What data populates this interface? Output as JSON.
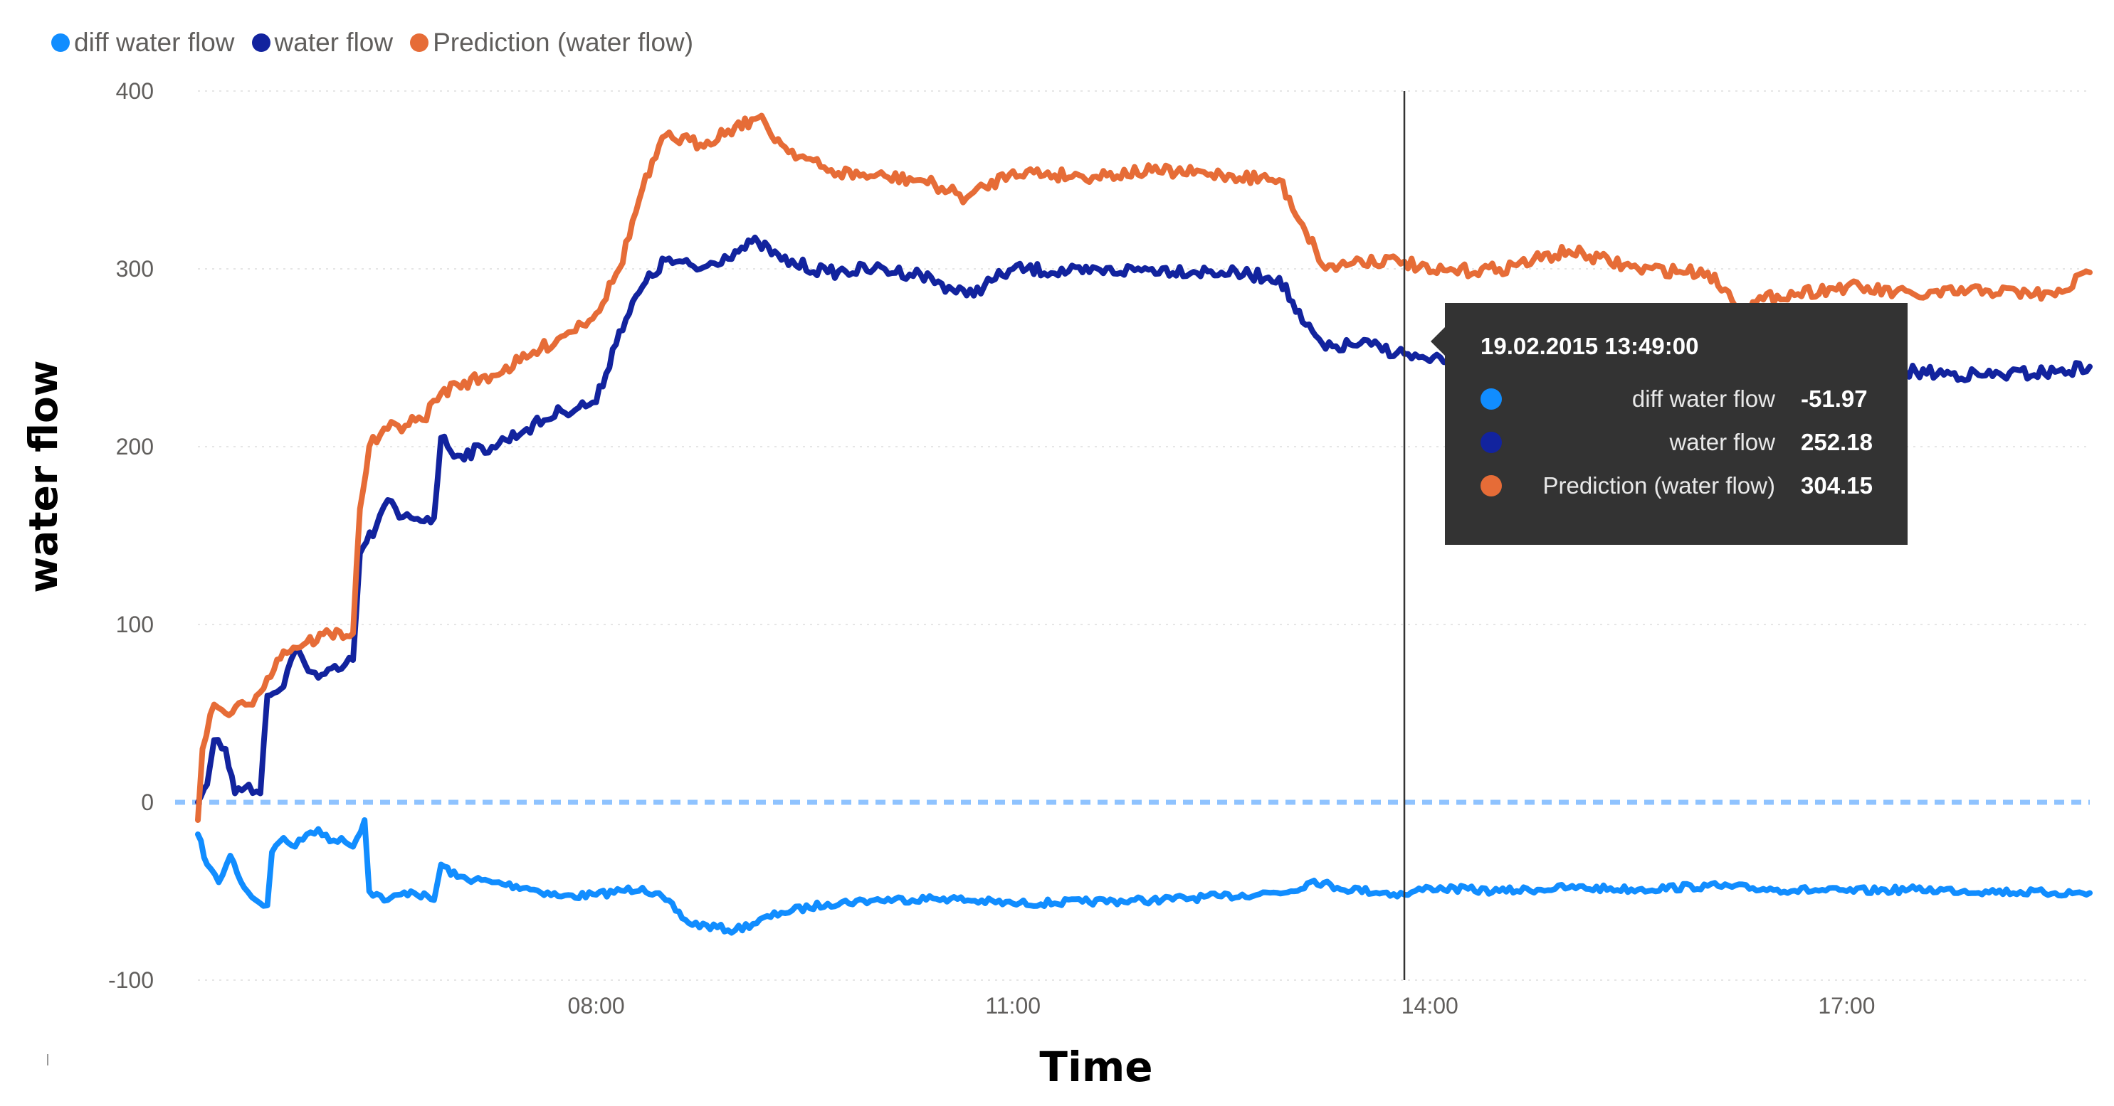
{
  "chart_data": {
    "type": "line",
    "title": "",
    "xlabel": "Time",
    "ylabel": "water flow",
    "x_ticks": [
      "08:00",
      "11:00",
      "14:00",
      "17:00"
    ],
    "y_ticks": [
      "400",
      "300",
      "200",
      "100",
      "0",
      "-100"
    ],
    "ylim": [
      -100,
      400
    ],
    "xlim": [
      "05:08",
      "18:45"
    ],
    "grid": true,
    "legend_position": "top-left",
    "series": [
      {
        "name": "diff water flow",
        "color": "#118dff",
        "points": [
          [
            "05:08",
            -18
          ],
          [
            "05:12",
            -35
          ],
          [
            "05:17",
            -45
          ],
          [
            "05:22",
            -30
          ],
          [
            "05:28",
            -48
          ],
          [
            "05:33",
            -55
          ],
          [
            "05:38",
            -58
          ],
          [
            "05:40",
            -28
          ],
          [
            "05:45",
            -20
          ],
          [
            "05:50",
            -25
          ],
          [
            "05:55",
            -18
          ],
          [
            "06:00",
            -15
          ],
          [
            "06:05",
            -22
          ],
          [
            "06:10",
            -20
          ],
          [
            "06:15",
            -25
          ],
          [
            "06:20",
            -10
          ],
          [
            "06:22",
            -50
          ],
          [
            "06:30",
            -55
          ],
          [
            "06:40",
            -50
          ],
          [
            "06:50",
            -55
          ],
          [
            "06:53",
            -35
          ],
          [
            "07:00",
            -42
          ],
          [
            "07:15",
            -45
          ],
          [
            "07:30",
            -48
          ],
          [
            "07:45",
            -53
          ],
          [
            "08:00",
            -52
          ],
          [
            "08:20",
            -48
          ],
          [
            "08:30",
            -55
          ],
          [
            "08:40",
            -68
          ],
          [
            "09:00",
            -72
          ],
          [
            "09:20",
            -62
          ],
          [
            "09:40",
            -57
          ],
          [
            "10:00",
            -55
          ],
          [
            "10:30",
            -54
          ],
          [
            "11:00",
            -57
          ],
          [
            "11:30",
            -56
          ],
          [
            "12:00",
            -55
          ],
          [
            "12:30",
            -53
          ],
          [
            "13:00",
            -50
          ],
          [
            "13:10",
            -44
          ],
          [
            "13:20",
            -48
          ],
          [
            "13:49",
            -51.97
          ],
          [
            "14:00",
            -48
          ],
          [
            "14:30",
            -50
          ],
          [
            "15:00",
            -48
          ],
          [
            "15:30",
            -49
          ],
          [
            "16:00",
            -47
          ],
          [
            "16:30",
            -49
          ],
          [
            "17:00",
            -50
          ],
          [
            "17:30",
            -49
          ],
          [
            "18:00",
            -50
          ],
          [
            "18:30",
            -51
          ],
          [
            "18:45",
            -51
          ]
        ]
      },
      {
        "name": "water flow",
        "color": "#12239e",
        "points": [
          [
            "05:08",
            0
          ],
          [
            "05:12",
            10
          ],
          [
            "05:15",
            35
          ],
          [
            "05:20",
            30
          ],
          [
            "05:24",
            5
          ],
          [
            "05:30",
            10
          ],
          [
            "05:35",
            5
          ],
          [
            "05:38",
            60
          ],
          [
            "05:45",
            65
          ],
          [
            "05:50",
            85
          ],
          [
            "06:00",
            70
          ],
          [
            "06:10",
            75
          ],
          [
            "06:15",
            80
          ],
          [
            "06:18",
            140
          ],
          [
            "06:25",
            155
          ],
          [
            "06:30",
            170
          ],
          [
            "06:35",
            160
          ],
          [
            "06:40",
            160
          ],
          [
            "06:50",
            160
          ],
          [
            "06:53",
            205
          ],
          [
            "07:00",
            195
          ],
          [
            "07:15",
            200
          ],
          [
            "07:30",
            210
          ],
          [
            "07:45",
            220
          ],
          [
            "08:00",
            225
          ],
          [
            "08:10",
            265
          ],
          [
            "08:20",
            290
          ],
          [
            "08:30",
            305
          ],
          [
            "08:45",
            300
          ],
          [
            "09:00",
            310
          ],
          [
            "09:10",
            315
          ],
          [
            "09:20",
            305
          ],
          [
            "09:40",
            298
          ],
          [
            "10:00",
            300
          ],
          [
            "10:20",
            297
          ],
          [
            "10:40",
            285
          ],
          [
            "11:00",
            300
          ],
          [
            "11:30",
            298
          ],
          [
            "12:00",
            300
          ],
          [
            "12:30",
            298
          ],
          [
            "12:55",
            295
          ],
          [
            "13:05",
            270
          ],
          [
            "13:15",
            255
          ],
          [
            "13:30",
            258
          ],
          [
            "13:49",
            252.18
          ],
          [
            "14:00",
            248
          ],
          [
            "14:30",
            250
          ],
          [
            "15:00",
            258
          ],
          [
            "15:30",
            248
          ],
          [
            "16:00",
            255
          ],
          [
            "16:30",
            240
          ],
          [
            "17:00",
            245
          ],
          [
            "17:30",
            242
          ],
          [
            "18:00",
            240
          ],
          [
            "18:30",
            242
          ],
          [
            "18:45",
            245
          ]
        ]
      },
      {
        "name": "Prediction (water flow)",
        "color": "#e66c37",
        "points": [
          [
            "05:08",
            -10
          ],
          [
            "05:10",
            30
          ],
          [
            "05:15",
            55
          ],
          [
            "05:20",
            50
          ],
          [
            "05:30",
            55
          ],
          [
            "05:38",
            70
          ],
          [
            "05:45",
            85
          ],
          [
            "05:55",
            90
          ],
          [
            "06:05",
            95
          ],
          [
            "06:15",
            95
          ],
          [
            "06:18",
            165
          ],
          [
            "06:22",
            200
          ],
          [
            "06:30",
            210
          ],
          [
            "06:45",
            215
          ],
          [
            "06:53",
            230
          ],
          [
            "07:00",
            235
          ],
          [
            "07:15",
            240
          ],
          [
            "07:30",
            250
          ],
          [
            "07:45",
            262
          ],
          [
            "08:00",
            275
          ],
          [
            "08:10",
            300
          ],
          [
            "08:20",
            345
          ],
          [
            "08:30",
            375
          ],
          [
            "08:45",
            370
          ],
          [
            "09:00",
            380
          ],
          [
            "09:10",
            385
          ],
          [
            "09:20",
            370
          ],
          [
            "09:40",
            355
          ],
          [
            "10:00",
            352
          ],
          [
            "10:20",
            350
          ],
          [
            "10:40",
            340
          ],
          [
            "11:00",
            355
          ],
          [
            "11:30",
            352
          ],
          [
            "12:00",
            355
          ],
          [
            "12:30",
            353
          ],
          [
            "12:55",
            350
          ],
          [
            "13:05",
            325
          ],
          [
            "13:15",
            300
          ],
          [
            "13:30",
            305
          ],
          [
            "13:49",
            304.15
          ],
          [
            "14:00",
            298
          ],
          [
            "14:30",
            300
          ],
          [
            "15:00",
            310
          ],
          [
            "15:30",
            300
          ],
          [
            "16:00",
            298
          ],
          [
            "16:15",
            278
          ],
          [
            "16:30",
            285
          ],
          [
            "17:00",
            290
          ],
          [
            "17:30",
            285
          ],
          [
            "18:00",
            288
          ],
          [
            "18:30",
            285
          ],
          [
            "18:45",
            298
          ]
        ]
      }
    ],
    "reference_line": {
      "y": 0,
      "color": "#8fc3ff",
      "style": "dashed"
    },
    "cursor": {
      "x": "13:49"
    }
  },
  "tooltip": {
    "title": "19.02.2015 13:49:00",
    "rows": [
      {
        "label": "diff water flow",
        "value": "-51.97",
        "color": "#118dff"
      },
      {
        "label": "water flow",
        "value": "252.18",
        "color": "#12239e"
      },
      {
        "label": "Prediction (water flow)",
        "value": "304.15",
        "color": "#e66c37"
      }
    ]
  }
}
